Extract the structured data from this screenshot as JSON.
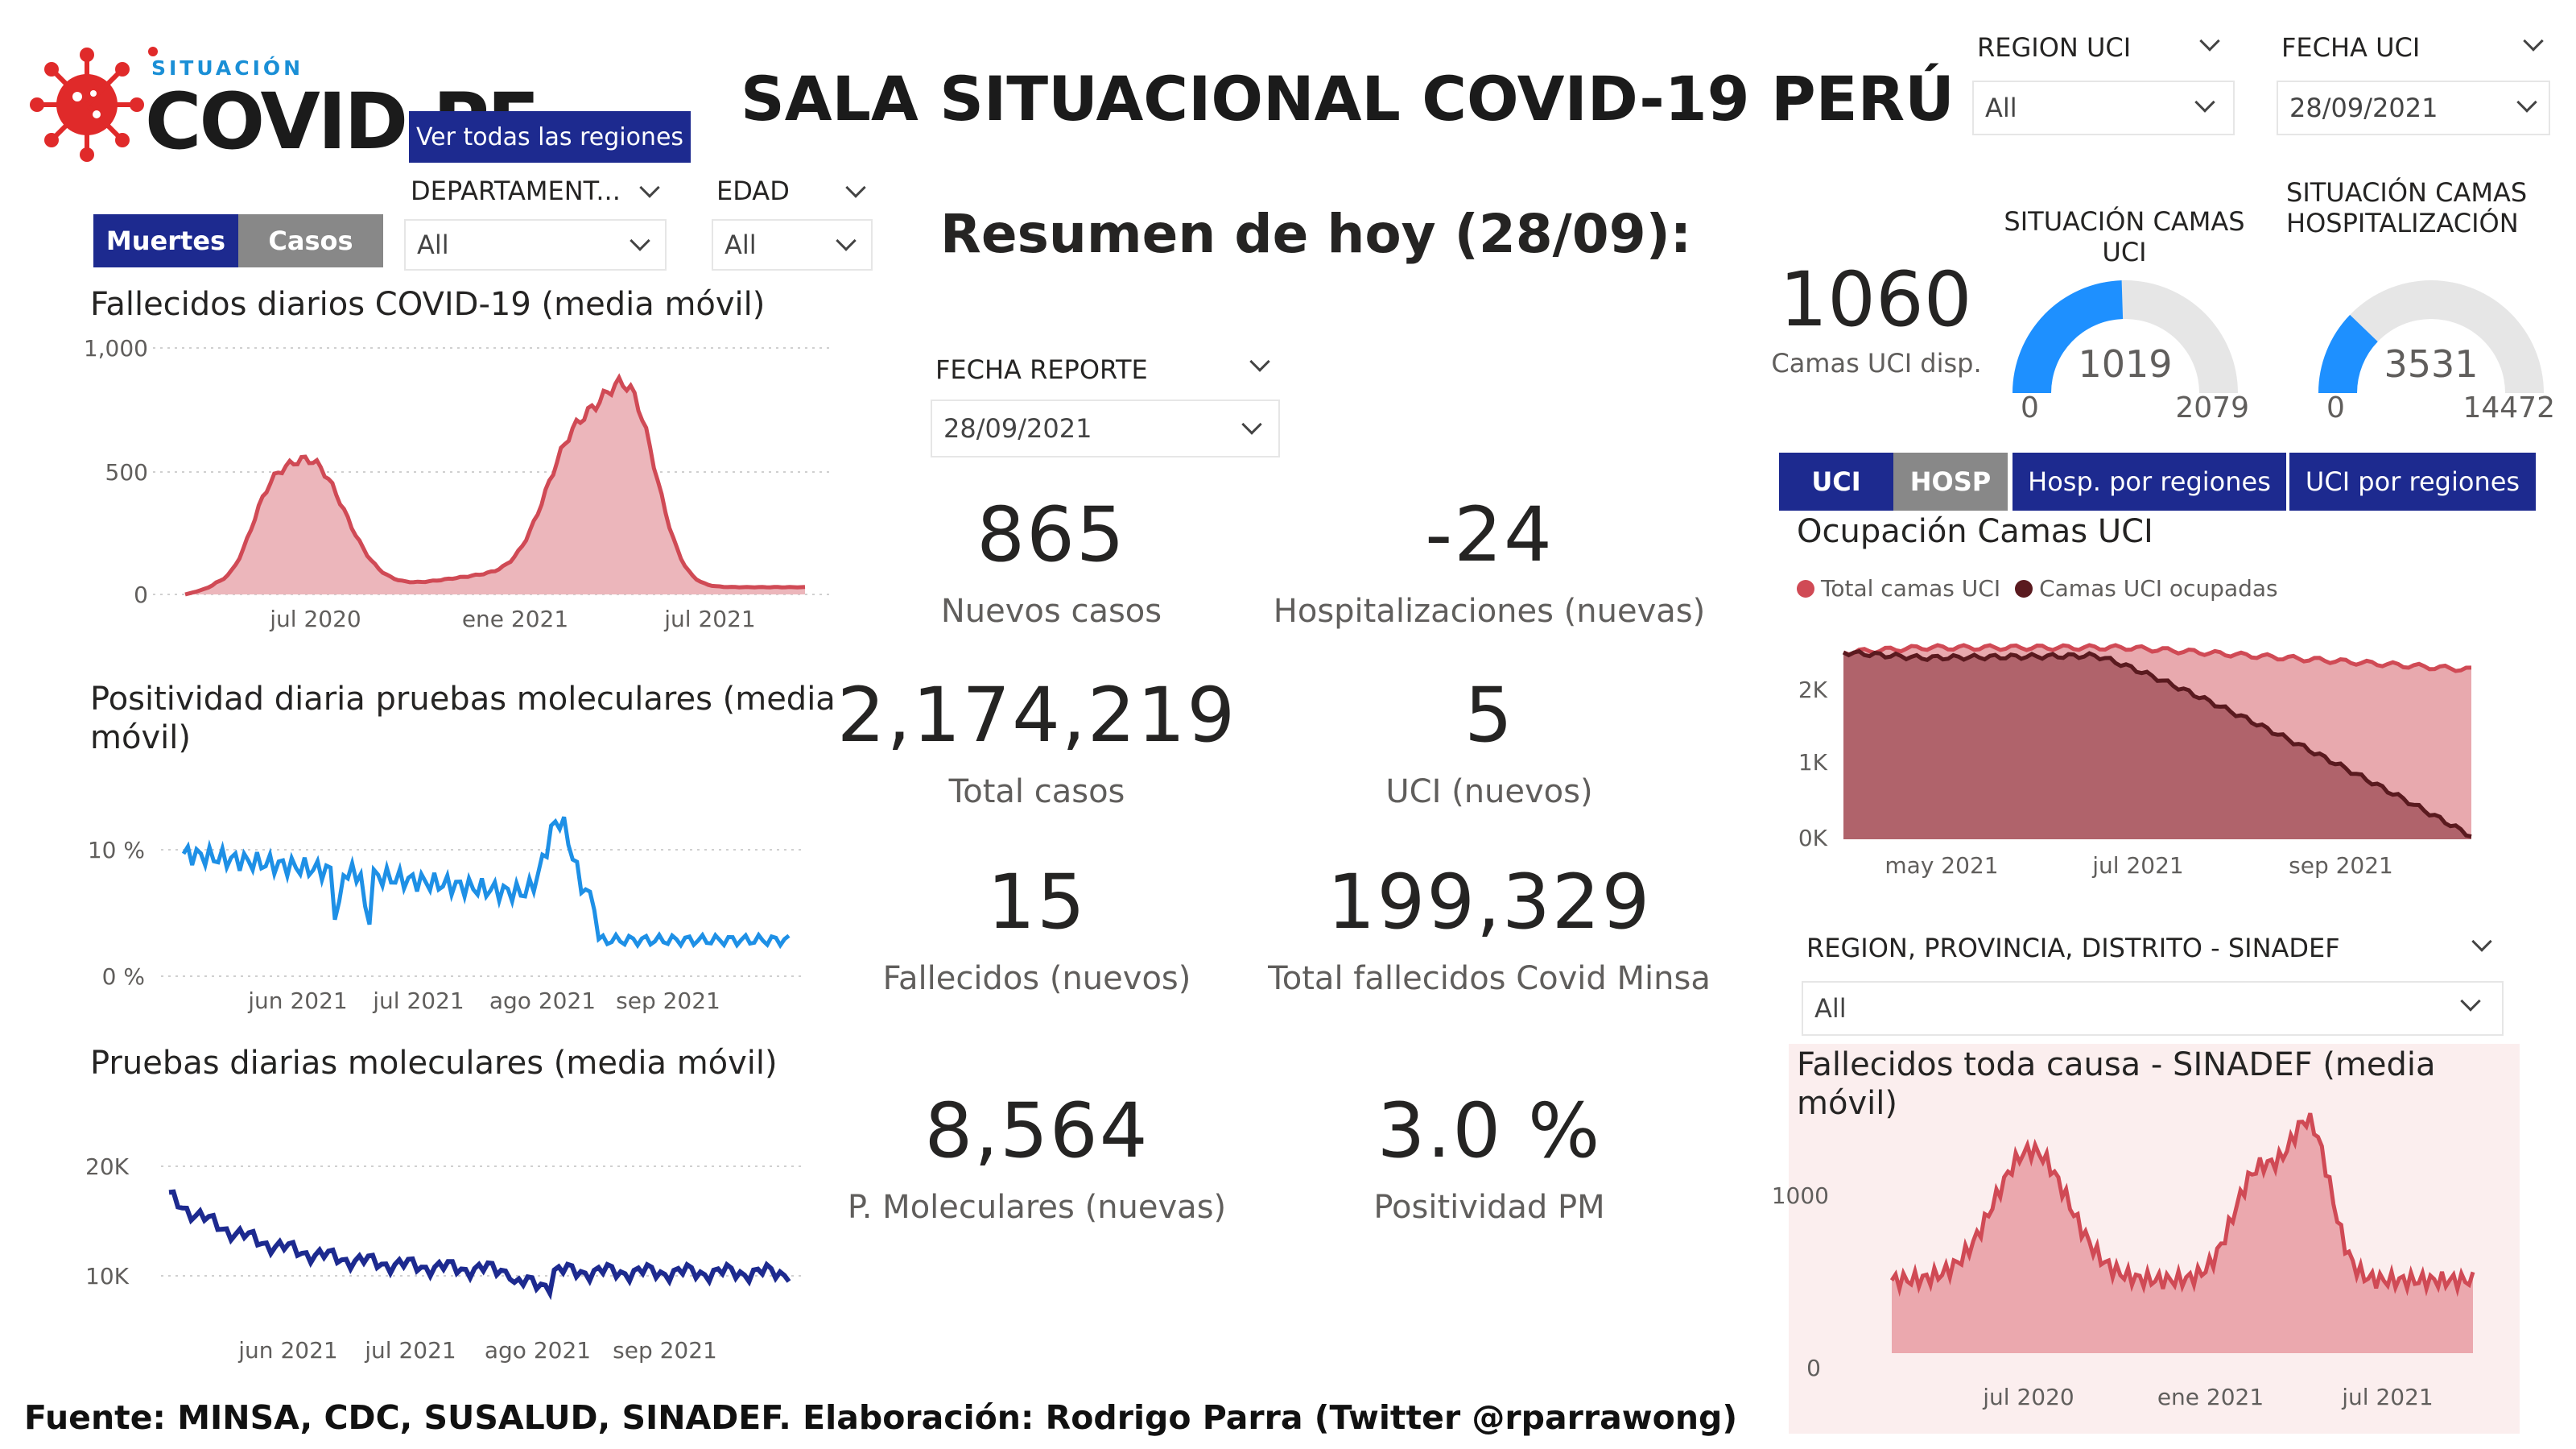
{
  "logo": {
    "top": "SITUACIÓN",
    "main": "COVID.PE"
  },
  "title": "SALA SITUACIONAL COVID-19 PERÚ",
  "buttons": {
    "all_regions": "Ver todas las regiones"
  },
  "slicers": {
    "departamento": {
      "label": "DEPARTAMENT...",
      "value": "All"
    },
    "edad": {
      "label": "EDAD",
      "value": "All"
    },
    "region_uci": {
      "label": "REGION UCI",
      "value": "All"
    },
    "fecha_uci": {
      "label": "FECHA UCI",
      "value": "28/09/2021"
    },
    "fecha_reporte": {
      "label": "FECHA REPORTE",
      "value": "28/09/2021"
    },
    "sinadef_region": {
      "label": "REGION, PROVINCIA, DISTRITO - SINADEF",
      "value": "All"
    }
  },
  "left_tabs": {
    "muertes": "Muertes",
    "casos": "Casos"
  },
  "charts": {
    "deaths": {
      "title": "Fallecidos diarios COVID-19 (media móvil)",
      "y_ticks": [
        "1,000",
        "500",
        "0"
      ],
      "x_ticks": [
        "jul 2020",
        "ene 2021",
        "jul 2021"
      ],
      "color": "#d04a55",
      "fill": "#ecb6bb"
    },
    "positivity": {
      "title": "Positividad diaria pruebas moleculares (media móvil)",
      "y_ticks": [
        "10 %",
        "0 %"
      ],
      "x_ticks": [
        "jun 2021",
        "jul 2021",
        "ago 2021",
        "sep 2021"
      ],
      "color": "#1e90e6"
    },
    "tests": {
      "title": "Pruebas diarias moleculares (media móvil)",
      "y_ticks": [
        "20K",
        "10K"
      ],
      "x_ticks": [
        "jun 2021",
        "jul 2021",
        "ago 2021",
        "sep 2021"
      ],
      "color": "#1d2a8f"
    },
    "icu": {
      "title": "Ocupación Camas UCI",
      "legend": [
        "Total camas UCI",
        "Camas UCI ocupadas"
      ],
      "legend_colors": [
        "#d04a55",
        "#5a1a1f"
      ],
      "y_ticks": [
        "2K",
        "1K",
        "0K"
      ],
      "x_ticks": [
        "may 2021",
        "jul 2021",
        "sep 2021"
      ]
    },
    "sinadef": {
      "title": "Fallecidos toda causa - SINADEF (media móvil)",
      "y_ticks": [
        "1000",
        "0"
      ],
      "x_ticks": [
        "jul 2020",
        "ene 2021",
        "jul 2021"
      ],
      "bg": "#fbeeee"
    }
  },
  "summary": {
    "heading": "Resumen de hoy (28/09):",
    "kpis": [
      {
        "value": "865",
        "label": "Nuevos casos"
      },
      {
        "value": "-24",
        "label": "Hospitalizaciones (nuevas)"
      },
      {
        "value": "2,174,219",
        "label": "Total casos"
      },
      {
        "value": "5",
        "label": "UCI (nuevos)"
      },
      {
        "value": "15",
        "label": "Fallecidos  (nuevos)"
      },
      {
        "value": "199,329",
        "label": "Total fallecidos Covid Minsa"
      },
      {
        "value": "8,564",
        "label": "P. Moleculares (nuevas)"
      },
      {
        "value": "3.0 %",
        "label": "Positividad PM"
      }
    ]
  },
  "beds": {
    "icu_available_value": "1060",
    "icu_available_label": "Camas UCI disp.",
    "gauge_uci": {
      "title": "SITUACIÓN CAMAS UCI",
      "value": "1019",
      "min": "0",
      "max": "2079",
      "fraction": 0.49
    },
    "gauge_hosp": {
      "title_line1": "SITUACIÓN CAMAS",
      "title_line2": "HOSPITALIZACIÓN",
      "value": "3531",
      "min": "0",
      "max": "14472",
      "fraction": 0.244
    }
  },
  "right_tabs": {
    "uci": "UCI",
    "hosp": "HOSP",
    "hosp_regions": "Hosp. por regiones",
    "uci_regions": "UCI por regiones"
  },
  "footer": "Fuente: MINSA, CDC, SUSALUD, SINADEF. Elaboración: Rodrigo Parra (Twitter @rparrawong)",
  "colors": {
    "navy": "#1d2a8f",
    "grey_tab": "#888888",
    "gauge_blue": "#1e90ff",
    "gauge_bg": "#e6e6e6"
  }
}
